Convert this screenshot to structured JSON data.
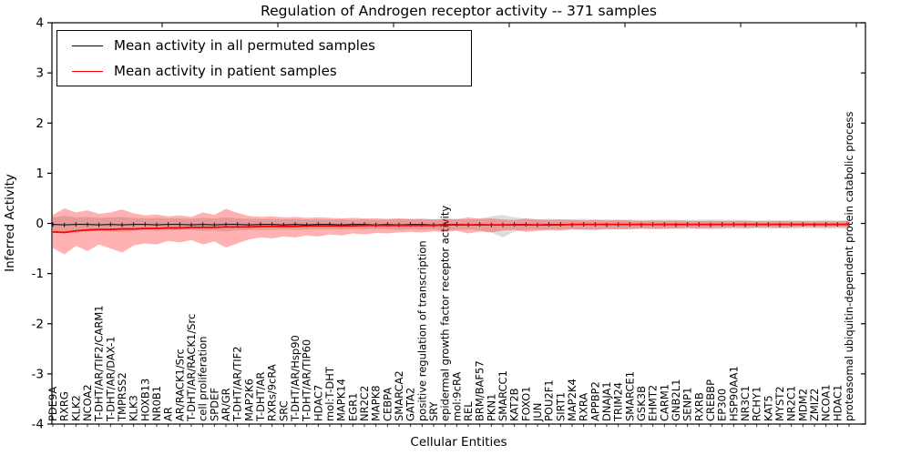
{
  "chart_data": {
    "type": "line",
    "title": "Regulation of Androgen receptor activity -- 371 samples",
    "xlabel": "Cellular Entities",
    "ylabel": "Inferred Activity",
    "ylim": [
      -4,
      4
    ],
    "grid": false,
    "legend_position": "upper-left",
    "ytick_values": [
      4,
      3,
      2,
      1,
      0,
      -1,
      -2,
      -3,
      -4
    ],
    "ytick_labels": [
      "4",
      "3",
      "2",
      "1",
      "0",
      "-1",
      "-2",
      "-3",
      "-4"
    ],
    "categories": [
      "PDE9A",
      "RXRG",
      "KLK2",
      "NCOA2",
      "T-DHT/AR/TIF2/CARM1",
      "T-DHT/AR/DAX-1",
      "TMPRSS2",
      "KLK3",
      "HOXB13",
      "NR0B1",
      "AR",
      "AR/RACK1/Src",
      "T-DHT/AR/RACK1/Src",
      "cell proliferation",
      "SPDEF",
      "AR/GR",
      "T-DHT/AR/TIF2",
      "MAP2K6",
      "T-DHT/AR",
      "RXRs/9cRA",
      "SRC",
      "T-DHT/AR/Hsp90",
      "T-DHT/AR/TIP60",
      "HDAC7",
      "mol:T-DHT",
      "MAPK14",
      "EGR1",
      "NR2C2",
      "MAPK8",
      "CEBPA",
      "SMARCA2",
      "GATA2",
      "positive regulation of transcription",
      "SRY",
      "epidermal growth factor receptor activity",
      "mol:9cRA",
      "REL",
      "BRM/BAF57",
      "PKN1",
      "SMARCC1",
      "KAT2B",
      "FOXO1",
      "JUN",
      "POU2F1",
      "SIRT1",
      "MAP2K4",
      "RXRA",
      "APPBP2",
      "DNAJA1",
      "TRIM24",
      "SMARCE1",
      "GSK3B",
      "EHMT2",
      "CARM1",
      "GNB2L1",
      "SENP1",
      "RXRB",
      "CREBBP",
      "EP300",
      "HSP90AA1",
      "NR3C1",
      "RCHY1",
      "KAT5",
      "MYST2",
      "NR2C1",
      "MDM2",
      "ZMIZ2",
      "NCOA1",
      "HDAC1",
      "proteasomal ubiquitin-dependent protein catabolic process"
    ],
    "series": [
      {
        "name": "Mean activity in all permuted samples",
        "color": "#000000",
        "band_color": "rgba(120,120,120,0.25)",
        "values": [
          -0.02,
          -0.03,
          -0.02,
          -0.02,
          -0.03,
          -0.02,
          -0.03,
          -0.02,
          -0.02,
          -0.03,
          -0.02,
          -0.02,
          -0.03,
          -0.02,
          -0.03,
          -0.02,
          -0.02,
          -0.03,
          -0.02,
          -0.02,
          -0.03,
          -0.02,
          -0.03,
          -0.02,
          -0.02,
          -0.03,
          -0.02,
          -0.02,
          -0.03,
          -0.02,
          -0.03,
          -0.02,
          -0.02,
          -0.03,
          -0.02,
          -0.02,
          -0.03,
          -0.02,
          -0.03,
          -0.03,
          -0.02,
          -0.02,
          -0.03,
          -0.02,
          -0.02,
          -0.03,
          -0.02,
          -0.02,
          -0.03,
          -0.02,
          -0.02,
          -0.03,
          -0.02,
          -0.02,
          -0.03,
          -0.02,
          -0.02,
          -0.03,
          -0.02,
          -0.02,
          -0.03,
          -0.02,
          -0.02,
          -0.03,
          -0.02,
          -0.02,
          -0.03,
          -0.02,
          -0.02,
          -0.02
        ],
        "band_upper": [
          0.12,
          0.15,
          0.12,
          0.13,
          0.11,
          0.12,
          0.13,
          0.11,
          0.1,
          0.11,
          0.1,
          0.1,
          0.09,
          0.11,
          0.1,
          0.12,
          0.1,
          0.09,
          0.09,
          0.09,
          0.08,
          0.09,
          0.08,
          0.08,
          0.08,
          0.08,
          0.07,
          0.08,
          0.07,
          0.08,
          0.09,
          0.08,
          0.09,
          0.08,
          0.1,
          0.09,
          0.08,
          0.1,
          0.14,
          0.17,
          0.12,
          0.09,
          0.08,
          0.09,
          0.08,
          0.08,
          0.09,
          0.08,
          0.08,
          0.07,
          0.08,
          0.07,
          0.07,
          0.08,
          0.07,
          0.07,
          0.07,
          0.08,
          0.07,
          0.07,
          0.07,
          0.06,
          0.07,
          0.06,
          0.07,
          0.06,
          0.06,
          0.07,
          0.06,
          0.07
        ],
        "band_lower": [
          -0.16,
          -0.19,
          -0.16,
          -0.17,
          -0.15,
          -0.16,
          -0.17,
          -0.15,
          -0.14,
          -0.15,
          -0.14,
          -0.14,
          -0.13,
          -0.15,
          -0.14,
          -0.16,
          -0.14,
          -0.13,
          -0.13,
          -0.13,
          -0.12,
          -0.13,
          -0.12,
          -0.12,
          -0.12,
          -0.12,
          -0.11,
          -0.12,
          -0.11,
          -0.12,
          -0.13,
          -0.12,
          -0.13,
          -0.12,
          -0.14,
          -0.13,
          -0.12,
          -0.14,
          -0.18,
          -0.28,
          -0.16,
          -0.13,
          -0.12,
          -0.13,
          -0.12,
          -0.12,
          -0.13,
          -0.12,
          -0.12,
          -0.11,
          -0.12,
          -0.11,
          -0.11,
          -0.12,
          -0.11,
          -0.11,
          -0.11,
          -0.12,
          -0.11,
          -0.11,
          -0.11,
          -0.1,
          -0.11,
          -0.1,
          -0.11,
          -0.1,
          -0.1,
          -0.11,
          -0.1,
          -0.11
        ]
      },
      {
        "name": "Mean activity in patient samples",
        "color": "#ff0000",
        "band_color": "rgba(255,0,0,0.3)",
        "values": [
          -0.17,
          -0.18,
          -0.15,
          -0.13,
          -0.12,
          -0.12,
          -0.11,
          -0.11,
          -0.1,
          -0.1,
          -0.09,
          -0.09,
          -0.08,
          -0.08,
          -0.08,
          -0.07,
          -0.07,
          -0.07,
          -0.06,
          -0.06,
          -0.06,
          -0.06,
          -0.05,
          -0.05,
          -0.05,
          -0.05,
          -0.05,
          -0.04,
          -0.04,
          -0.04,
          -0.04,
          -0.04,
          -0.04,
          -0.04,
          -0.03,
          -0.03,
          -0.03,
          -0.03,
          -0.03,
          -0.03,
          -0.03,
          -0.03,
          -0.03,
          -0.03,
          -0.03,
          -0.02,
          -0.02,
          -0.02,
          -0.02,
          -0.02,
          -0.02,
          -0.02,
          -0.02,
          -0.02,
          -0.02,
          -0.02,
          -0.02,
          -0.02,
          -0.02,
          -0.02,
          -0.02,
          -0.02,
          -0.02,
          -0.02,
          -0.02,
          -0.02,
          -0.02,
          -0.02,
          -0.02,
          -0.02
        ],
        "band_upper": [
          0.17,
          0.3,
          0.22,
          0.26,
          0.19,
          0.22,
          0.28,
          0.2,
          0.16,
          0.18,
          0.14,
          0.16,
          0.13,
          0.22,
          0.17,
          0.29,
          0.21,
          0.15,
          0.13,
          0.14,
          0.12,
          0.13,
          0.11,
          0.12,
          0.11,
          0.1,
          0.11,
          0.1,
          0.1,
          0.09,
          0.1,
          0.09,
          0.09,
          0.08,
          0.09,
          0.08,
          0.12,
          0.09,
          0.1,
          0.08,
          0.07,
          0.1,
          0.08,
          0.07,
          0.08,
          0.07,
          0.06,
          0.07,
          0.06,
          0.07,
          0.06,
          0.05,
          0.06,
          0.05,
          0.06,
          0.05,
          0.05,
          0.05,
          0.05,
          0.05,
          0.05,
          0.04,
          0.04,
          0.05,
          0.04,
          0.04,
          0.04,
          0.04,
          0.04,
          0.05
        ],
        "band_lower": [
          -0.49,
          -0.62,
          -0.45,
          -0.55,
          -0.42,
          -0.5,
          -0.58,
          -0.44,
          -0.4,
          -0.42,
          -0.35,
          -0.38,
          -0.33,
          -0.42,
          -0.36,
          -0.48,
          -0.4,
          -0.32,
          -0.28,
          -0.3,
          -0.26,
          -0.28,
          -0.24,
          -0.26,
          -0.22,
          -0.24,
          -0.2,
          -0.22,
          -0.19,
          -0.2,
          -0.18,
          -0.17,
          -0.18,
          -0.16,
          -0.17,
          -0.15,
          -0.2,
          -0.16,
          -0.18,
          -0.14,
          -0.13,
          -0.17,
          -0.15,
          -0.13,
          -0.14,
          -0.12,
          -0.12,
          -0.13,
          -0.11,
          -0.12,
          -0.11,
          -0.1,
          -0.11,
          -0.1,
          -0.1,
          -0.09,
          -0.1,
          -0.09,
          -0.09,
          -0.08,
          -0.09,
          -0.08,
          -0.08,
          -0.09,
          -0.08,
          -0.07,
          -0.07,
          -0.08,
          -0.07,
          -0.08
        ]
      }
    ],
    "legend": [
      "Mean activity in all permuted samples",
      "Mean activity in patient samples"
    ]
  },
  "colors": {
    "permuted_line": "#000000",
    "patient_line": "#ff0000",
    "axis": "#000000",
    "background": "#ffffff"
  }
}
